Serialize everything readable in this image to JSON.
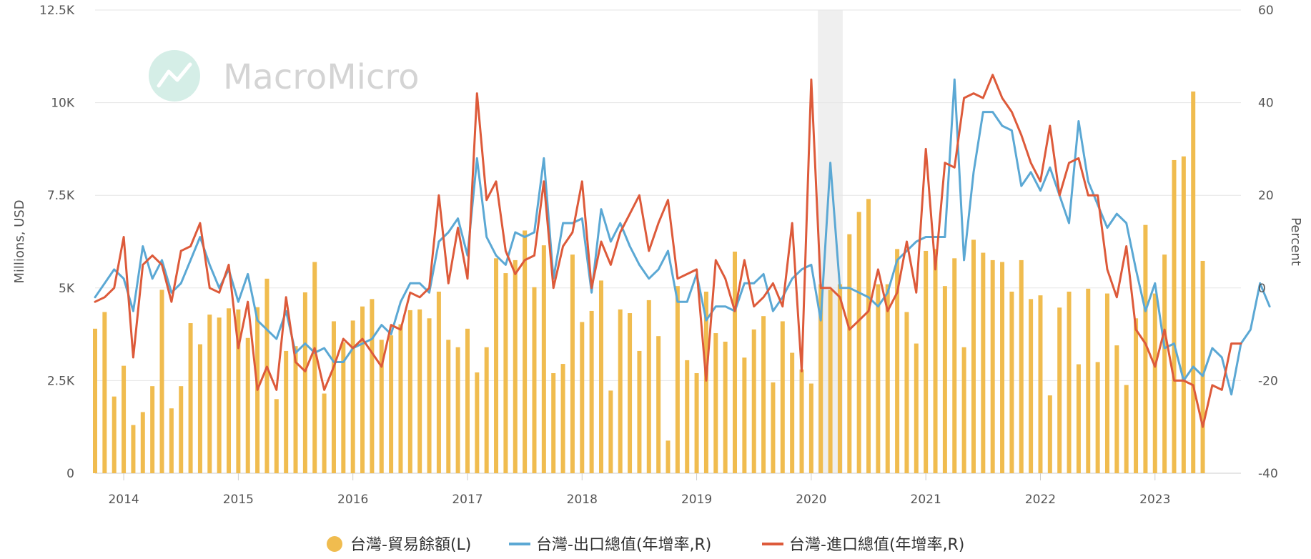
{
  "watermark": "MacroMicro",
  "chart_data": {
    "type": "bar+line",
    "x_range": [
      "2013-10",
      "2023-10"
    ],
    "x_ticks": [
      "2014",
      "2015",
      "2016",
      "2017",
      "2018",
      "2019",
      "2020",
      "2021",
      "2022",
      "2023"
    ],
    "y_left": {
      "label": "Millions, USD",
      "range": [
        0,
        12500
      ],
      "ticks": [
        0,
        2500,
        5000,
        7500,
        10000,
        12500
      ],
      "tick_labels": [
        "0",
        "2.5K",
        "5K",
        "7.5K",
        "10K",
        "12.5K"
      ]
    },
    "y_right": {
      "label": "Percent",
      "range": [
        -40,
        60
      ],
      "ticks": [
        -40,
        -20,
        0,
        20,
        40,
        60
      ],
      "tick_labels": [
        "-40",
        "-20",
        "0",
        "20",
        "40",
        "60"
      ]
    },
    "shaded_range": [
      "2020-02",
      "2020-04"
    ],
    "grid": true,
    "legend_position": "bottom",
    "series": [
      {
        "name": "台灣-貿易餘額(L)",
        "type": "bar",
        "axis": "left",
        "color": "#f0bc4f",
        "values": [
          3900,
          4350,
          2070,
          2900,
          1300,
          1650,
          2350,
          4950,
          1750,
          2350,
          4050,
          3480,
          4280,
          4200,
          4450,
          4420,
          3650,
          4480,
          5250,
          2000,
          3300,
          3430,
          4880,
          5700,
          2150,
          4100,
          3530,
          4120,
          4500,
          4700,
          3600,
          3720,
          4020,
          4400,
          4420,
          4180,
          4900,
          3600,
          3400,
          3900,
          2720,
          3400,
          5800,
          5400,
          5750,
          6550,
          5020,
          6150,
          2700,
          2950,
          5900,
          4080,
          4380,
          5200,
          2230,
          4420,
          4320,
          3300,
          4670,
          3700,
          880,
          5050,
          3050,
          2700,
          4900,
          3780,
          3550,
          5980,
          3120,
          3880,
          4240,
          2450,
          4100,
          3250,
          2800,
          2420,
          5100,
          4950,
          5100,
          6450,
          7050,
          7400,
          5100,
          5100,
          6050,
          4350,
          3500,
          6000,
          6050,
          5050,
          5800,
          3400,
          6300,
          5950,
          5750,
          5700,
          4900,
          5750,
          4700,
          4800,
          2100,
          4470,
          4900,
          2940,
          4980,
          3000,
          4850,
          3450,
          2380,
          4180,
          6700,
          4850,
          5900,
          8450,
          8550,
          10300,
          5730
        ]
      },
      {
        "name": "台灣-出口總值(年增率,R)",
        "type": "line",
        "axis": "right",
        "color": "#5ba8d4",
        "values": [
          -2,
          1,
          4,
          2,
          -5,
          9,
          2,
          6,
          -1,
          1,
          6,
          11,
          5,
          0,
          4,
          -3,
          3,
          -7,
          -9,
          -11,
          -5,
          -14,
          -12,
          -14,
          -13,
          -16,
          -16,
          -13,
          -12,
          -11,
          -8,
          -10,
          -3,
          1,
          1,
          -1,
          10,
          12,
          15,
          7,
          28,
          11,
          7,
          5,
          12,
          11,
          12,
          28,
          2,
          14,
          14,
          15,
          -1,
          17,
          10,
          14,
          9,
          5,
          2,
          4,
          8,
          -3,
          -3,
          3,
          -7,
          -4,
          -4,
          -5,
          1,
          1,
          3,
          -5,
          -2,
          2,
          4,
          5,
          -7,
          27,
          0,
          0,
          -1,
          -2,
          -4,
          -1,
          6,
          8,
          10,
          11,
          11,
          11,
          45,
          6,
          25,
          38,
          38,
          35,
          34,
          22,
          25,
          21,
          26,
          20,
          14,
          36,
          23,
          18,
          13,
          16,
          14,
          4,
          -5,
          1,
          -13,
          -12,
          -20,
          -17,
          -19,
          -13,
          -15,
          -23,
          -12,
          -9,
          1,
          -4
        ]
      },
      {
        "name": "台灣-進口總值(年增率,R)",
        "type": "line",
        "axis": "right",
        "color": "#dd5a3a",
        "values": [
          -3,
          -2,
          0,
          11,
          -15,
          5,
          7,
          5,
          -3,
          8,
          9,
          14,
          0,
          -1,
          5,
          -13,
          -3,
          -22,
          -17,
          -22,
          -2,
          -16,
          -18,
          -13,
          -22,
          -17,
          -11,
          -13,
          -11,
          -14,
          -17,
          -8,
          -9,
          -1,
          -2,
          0,
          20,
          1,
          13,
          2,
          42,
          19,
          23,
          8,
          3,
          6,
          7,
          23,
          0,
          9,
          12,
          23,
          0,
          10,
          5,
          12,
          16,
          20,
          8,
          14,
          19,
          2,
          3,
          4,
          -20,
          6,
          2,
          -5,
          6,
          -4,
          -2,
          1,
          -4,
          14,
          -18,
          45,
          0,
          0,
          -2,
          -9,
          -7,
          -5,
          4,
          -5,
          -1,
          10,
          -1,
          30,
          4,
          27,
          26,
          41,
          42,
          41,
          46,
          41,
          38,
          33,
          27,
          23,
          35,
          20,
          27,
          28,
          20,
          20,
          4,
          -2,
          9,
          -9,
          -12,
          -17,
          -9,
          -20,
          -20,
          -21,
          -30,
          -21,
          -22,
          -12,
          -12
        ]
      }
    ]
  }
}
